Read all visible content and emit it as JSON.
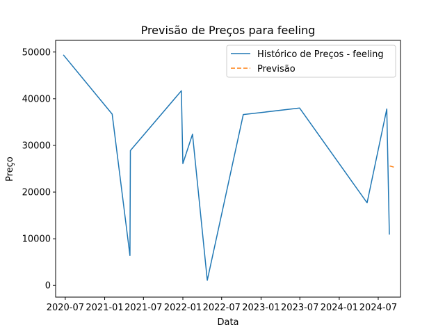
{
  "chart_data": {
    "type": "line",
    "title": "Previsão de Preços para feeling",
    "xlabel": "Data",
    "ylabel": "Preço",
    "xlim": [
      "2020-05-17",
      "2024-10-13"
    ],
    "ylim": [
      -2500,
      52500
    ],
    "x_ticks": [
      "2020-07-01",
      "2021-01-01",
      "2021-07-01",
      "2022-01-01",
      "2022-07-01",
      "2023-01-01",
      "2023-07-01",
      "2024-01-01",
      "2024-07-01"
    ],
    "x_tick_labels": [
      "2020-07",
      "2021-01",
      "2021-07",
      "2022-01",
      "2022-07",
      "2023-01",
      "2023-07",
      "2024-01",
      "2024-07"
    ],
    "y_ticks": [
      0,
      10000,
      20000,
      30000,
      40000,
      50000
    ],
    "y_tick_labels": [
      "0",
      "10000",
      "20000",
      "30000",
      "40000",
      "50000"
    ],
    "grid": false,
    "legend_position": "top-right",
    "series": [
      {
        "name": "Histórico de Preços - feeling",
        "color": "#1f77b4",
        "style": "solid",
        "points": [
          {
            "x": "2020-06-22",
            "y": 49400
          },
          {
            "x": "2021-02-05",
            "y": 36700
          },
          {
            "x": "2021-04-29",
            "y": 6400
          },
          {
            "x": "2021-05-01",
            "y": 28900
          },
          {
            "x": "2021-12-25",
            "y": 41700
          },
          {
            "x": "2022-01-01",
            "y": 26100
          },
          {
            "x": "2022-02-15",
            "y": 32400
          },
          {
            "x": "2022-04-25",
            "y": 1100
          },
          {
            "x": "2022-10-10",
            "y": 36600
          },
          {
            "x": "2023-06-30",
            "y": 38000
          },
          {
            "x": "2024-05-10",
            "y": 17700
          },
          {
            "x": "2024-08-10",
            "y": 37800
          },
          {
            "x": "2024-08-22",
            "y": 10900
          }
        ]
      },
      {
        "name": "Previsão",
        "color": "#ff7f0e",
        "style": "dashed",
        "points": [
          {
            "x": "2024-08-24",
            "y": 25600
          },
          {
            "x": "2024-09-15",
            "y": 25300
          }
        ]
      }
    ]
  }
}
